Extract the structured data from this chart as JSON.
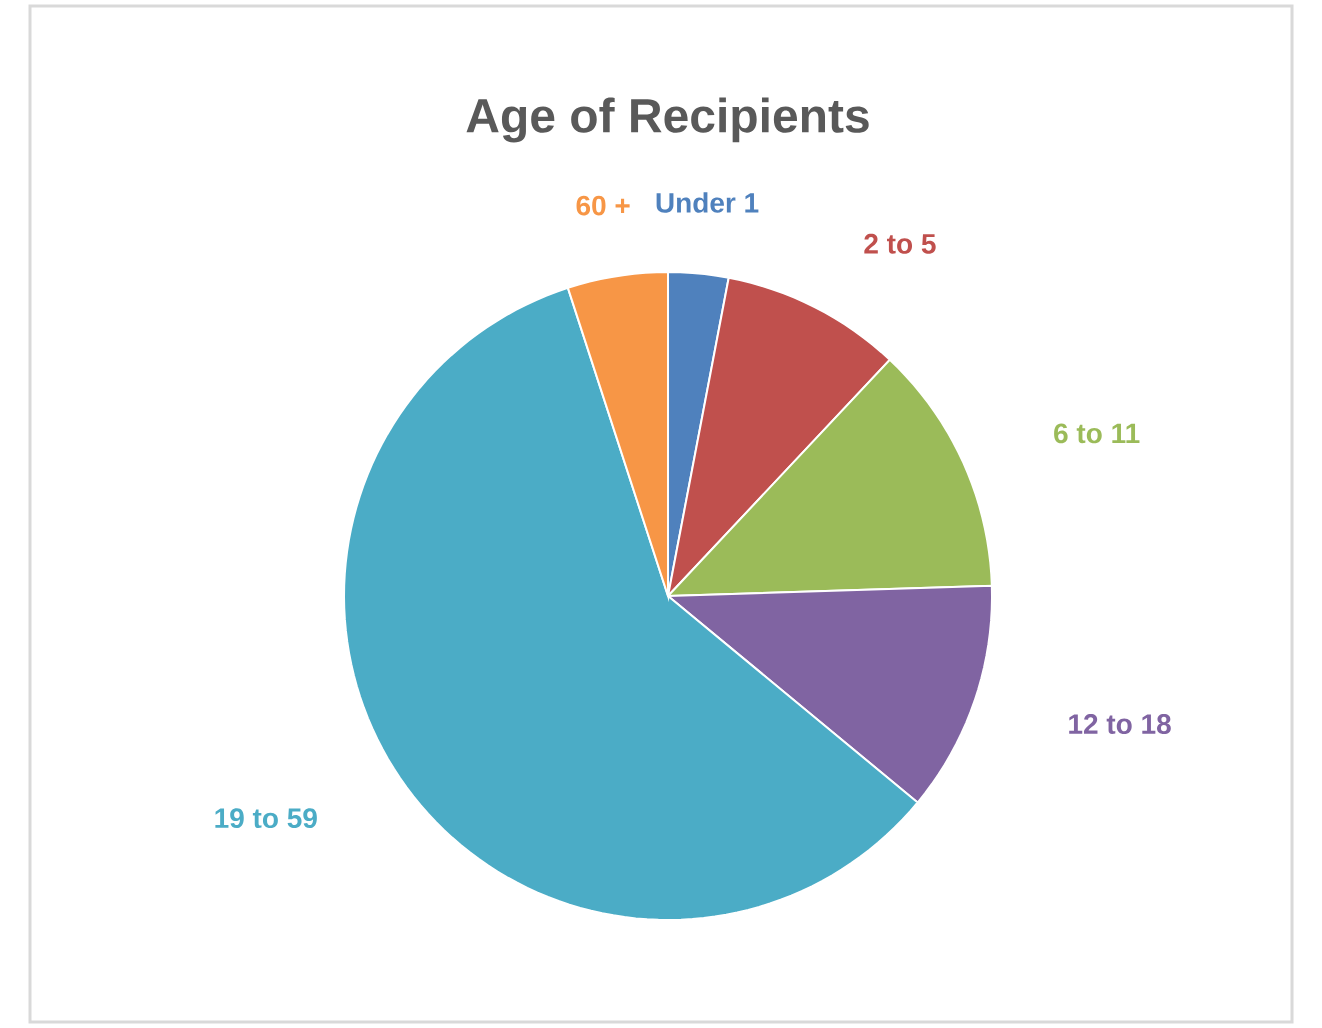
{
  "chart_data": {
    "type": "pie",
    "title": "Age of Recipients",
    "categories": [
      "Under 1",
      "2 to 5",
      "6 to 11",
      "12 to 18",
      "19 to 59",
      "60 +"
    ],
    "values": [
      3,
      9,
      12.5,
      11.5,
      59,
      5
    ],
    "colors": [
      "#4f81bd",
      "#c0504d",
      "#9bbb59",
      "#8064a2",
      "#4bacc6",
      "#f79646"
    ]
  }
}
